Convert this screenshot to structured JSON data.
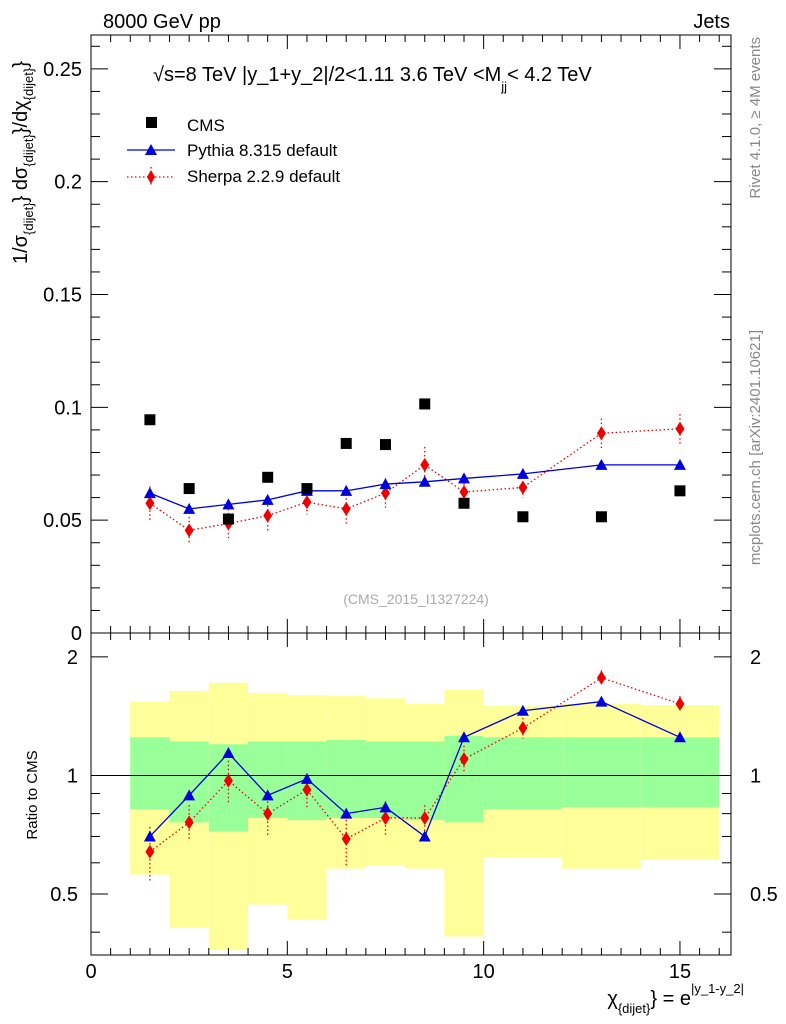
{
  "header": {
    "left_label": "8000 GeV pp",
    "right_label": "Jets"
  },
  "side_labels": {
    "rivet": "Rivet 4.1.0, ≥ 4M events",
    "mcplots": "mcplots.cern.ch [arXiv:2401.10621]"
  },
  "analysis_label": "(CMS_2015_I1327224)",
  "title": {
    "sqrt_symbol": "√",
    "part1": "s=8 TeV |y_1+y_2|/2<1.11 3.6 TeV <M",
    "subscript": "jj",
    "part2": "< 4.2 TeV"
  },
  "colors": {
    "cms": "#000000",
    "pythia": "#0000dd",
    "sherpa": "#ee0000",
    "band_inner": "#99ff99",
    "band_outer": "#ffff99"
  },
  "chart_data": [
    {
      "type": "scatter",
      "panel": "main",
      "ylabel": "1/σ{dijet} dσ{dijet}/dχ{dijet}",
      "ylabel_parts": [
        "1/σ",
        "{dijet}",
        "} dσ",
        "{dijet}",
        "}/dχ",
        "{dijet}",
        "}"
      ],
      "xlim": [
        0,
        16.3
      ],
      "ylim": [
        0,
        0.265
      ],
      "yticks": [
        0,
        0.05,
        0.1,
        0.15,
        0.2,
        0.25
      ],
      "ytick_labels": [
        "0",
        "0.05",
        "0.1",
        "0.15",
        "0.2",
        "0.25"
      ],
      "legend_position": "top-left",
      "series": [
        {
          "name": "CMS",
          "style": "square",
          "x": [
            1.5,
            2.5,
            3.5,
            4.5,
            5.5,
            6.5,
            7.5,
            8.5,
            9.5,
            11,
            13,
            15
          ],
          "y": [
            0.0945,
            0.064,
            0.0505,
            0.069,
            0.064,
            0.084,
            0.0835,
            0.1015,
            0.0575,
            0.0515,
            0.0515,
            0.063
          ],
          "xerr": [
            0.5,
            0.5,
            0.5,
            0.5,
            0.5,
            0.5,
            0.5,
            0.5,
            0.5,
            1,
            1,
            1
          ]
        },
        {
          "name": "Pythia 8.315 default",
          "style": "triangle-line",
          "x": [
            1.5,
            2.5,
            3.5,
            4.5,
            5.5,
            6.5,
            7.5,
            8.5,
            9.5,
            11,
            13,
            15
          ],
          "y": [
            0.062,
            0.055,
            0.057,
            0.059,
            0.063,
            0.063,
            0.066,
            0.067,
            0.0685,
            0.0705,
            0.0745,
            0.0745
          ],
          "yerr": [
            0.001,
            0.001,
            0.001,
            0.001,
            0.001,
            0.001,
            0.001,
            0.001,
            0.001,
            0.001,
            0.001,
            0.001
          ]
        },
        {
          "name": "Sherpa 2.2.9 default",
          "style": "diamond-dotted",
          "x": [
            1.5,
            2.5,
            3.5,
            4.5,
            5.5,
            6.5,
            7.5,
            8.5,
            9.5,
            11,
            13,
            15
          ],
          "y": [
            0.0575,
            0.0455,
            0.0485,
            0.052,
            0.058,
            0.055,
            0.062,
            0.0745,
            0.0625,
            0.0645,
            0.0885,
            0.0905
          ],
          "yerr": [
            0.0075,
            0.006,
            0.0065,
            0.0065,
            0.0055,
            0.0065,
            0.0065,
            0.008,
            0.0055,
            0.0045,
            0.0065,
            0.0065
          ]
        }
      ]
    },
    {
      "type": "line",
      "panel": "ratio",
      "ylabel": "Ratio to CMS",
      "xlabel_parts": [
        "χ",
        "{dijet}",
        "} = e",
        "|y_1-y_2|"
      ],
      "xlim": [
        0,
        16.3
      ],
      "ylim": [
        0.35,
        2.3
      ],
      "yticks": [
        0.5,
        1,
        2
      ],
      "ytick_labels": [
        "0.5",
        "1",
        "2"
      ],
      "xticks": [
        0,
        5,
        10,
        15
      ],
      "xtick_labels": [
        "0",
        "5",
        "10",
        "15"
      ],
      "band_bins": [
        [
          1,
          2
        ],
        [
          2,
          3
        ],
        [
          3,
          4
        ],
        [
          4,
          5
        ],
        [
          5,
          6
        ],
        [
          6,
          7
        ],
        [
          7,
          8
        ],
        [
          8,
          9
        ],
        [
          9,
          10
        ],
        [
          10,
          12
        ],
        [
          12,
          14
        ],
        [
          14,
          16
        ]
      ],
      "band_inner": [
        [
          0.82,
          1.25
        ],
        [
          0.76,
          1.22
        ],
        [
          0.72,
          1.2
        ],
        [
          0.78,
          1.22
        ],
        [
          0.77,
          1.22
        ],
        [
          0.78,
          1.23
        ],
        [
          0.78,
          1.22
        ],
        [
          0.77,
          1.22
        ],
        [
          0.76,
          1.26
        ],
        [
          0.82,
          1.25
        ],
        [
          0.83,
          1.25
        ],
        [
          0.83,
          1.25
        ]
      ],
      "band_outer": [
        [
          0.56,
          1.54
        ],
        [
          0.41,
          1.64
        ],
        [
          0.36,
          1.72
        ],
        [
          0.47,
          1.62
        ],
        [
          0.43,
          1.6
        ],
        [
          0.58,
          1.59
        ],
        [
          0.59,
          1.57
        ],
        [
          0.58,
          1.52
        ],
        [
          0.39,
          1.65
        ],
        [
          0.62,
          1.5
        ],
        [
          0.58,
          1.52
        ],
        [
          0.61,
          1.51
        ]
      ],
      "series": [
        {
          "name": "Pythia 8.315 default",
          "x": [
            1.5,
            2.5,
            3.5,
            4.5,
            5.5,
            6.5,
            7.5,
            8.5,
            9.5,
            11,
            13,
            15
          ],
          "y": [
            0.7,
            0.89,
            1.14,
            0.89,
            0.98,
            0.8,
            0.83,
            0.7,
            1.25,
            1.46,
            1.54,
            1.25
          ],
          "yerr": [
            0.02,
            0.02,
            0.02,
            0.02,
            0.02,
            0.02,
            0.02,
            0.02,
            0.02,
            0.02,
            0.02,
            0.02
          ]
        },
        {
          "name": "Sherpa 2.2.9 default",
          "x": [
            1.5,
            2.5,
            3.5,
            4.5,
            5.5,
            6.5,
            7.5,
            8.5,
            9.5,
            11,
            13,
            15
          ],
          "y": [
            0.64,
            0.76,
            0.97,
            0.8,
            0.92,
            0.69,
            0.78,
            0.78,
            1.1,
            1.32,
            1.77,
            1.52
          ],
          "yerr": [
            0.1,
            0.08,
            0.12,
            0.1,
            0.09,
            0.1,
            0.08,
            0.06,
            0.09,
            0.08,
            0.08,
            0.07
          ]
        }
      ]
    }
  ]
}
